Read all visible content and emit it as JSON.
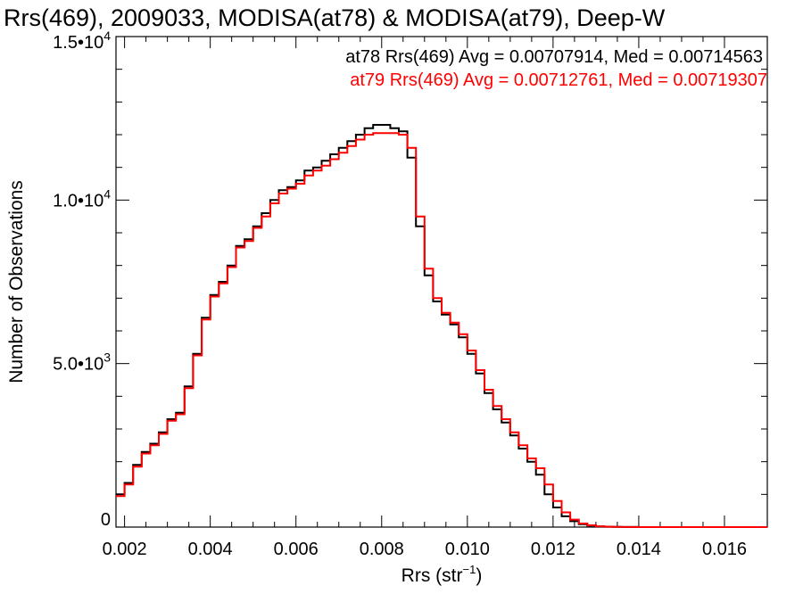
{
  "chart_data": {
    "type": "line",
    "title": "Rrs(469), 2009033, MODISA(at78) & MODISA(at79), Deep-W",
    "xlabel_main": "Rrs (str",
    "xlabel_sup": "−1",
    "xlabel_close": ")",
    "ylabel": "Number of Observations",
    "xlim": [
      0.0018,
      0.017
    ],
    "ylim": [
      0,
      15000
    ],
    "x_ticks": [
      0.002,
      0.004,
      0.006,
      0.008,
      0.01,
      0.012,
      0.014,
      0.016
    ],
    "x_tick_labels": [
      "0.002",
      "0.004",
      "0.006",
      "0.008",
      "0.010",
      "0.012",
      "0.014",
      "0.016"
    ],
    "y_ticks": [
      0,
      5000,
      10000,
      15000
    ],
    "y_tick_labels": [
      {
        "mantissa": "0",
        "exp": ""
      },
      {
        "mantissa": "5.0•10",
        "exp": "3"
      },
      {
        "mantissa": "1.0•10",
        "exp": "4"
      },
      {
        "mantissa": "1.5•10",
        "exp": "4"
      }
    ],
    "annotations": [
      {
        "text": "at78 Rrs(469) Avg = 0.00707914, Med = 0.00714563",
        "color": "#000000"
      },
      {
        "text": "at79 Rrs(469) Avg = 0.00712761, Med = 0.00719307",
        "color": "#ff0000"
      }
    ],
    "series": [
      {
        "color": "#000000",
        "x": [
          0.0018,
          0.002,
          0.0022,
          0.0024,
          0.0026,
          0.0028,
          0.003,
          0.0032,
          0.0034,
          0.0036,
          0.0038,
          0.004,
          0.0042,
          0.0044,
          0.0046,
          0.0048,
          0.005,
          0.0052,
          0.0054,
          0.0056,
          0.0058,
          0.006,
          0.0062,
          0.0064,
          0.0066,
          0.0068,
          0.007,
          0.0072,
          0.0074,
          0.0076,
          0.0078,
          0.008,
          0.0082,
          0.0084,
          0.0086,
          0.0088,
          0.009,
          0.0092,
          0.0094,
          0.0096,
          0.0098,
          0.01,
          0.0102,
          0.0104,
          0.0106,
          0.0108,
          0.011,
          0.0112,
          0.0114,
          0.0116,
          0.0118,
          0.012,
          0.0122,
          0.0124,
          0.0126,
          0.0128,
          0.013,
          0.0132,
          0.0134,
          0.0136,
          0.0138,
          0.014,
          0.0145,
          0.015,
          0.016,
          0.017
        ],
        "values": [
          1000,
          1350,
          1900,
          2300,
          2550,
          2900,
          3300,
          3500,
          4300,
          5300,
          6400,
          7100,
          7500,
          8000,
          8600,
          8800,
          9200,
          9600,
          10000,
          10300,
          10400,
          10600,
          10900,
          11000,
          11200,
          11400,
          11600,
          11800,
          12000,
          12200,
          12300,
          12300,
          12200,
          12100,
          11300,
          9200,
          7700,
          6900,
          6500,
          6200,
          5800,
          5300,
          4700,
          4100,
          3600,
          3200,
          2800,
          2400,
          2000,
          1600,
          1000,
          600,
          330,
          180,
          90,
          45,
          20,
          10,
          5,
          3,
          2,
          1,
          0,
          0,
          0,
          0
        ]
      },
      {
        "color": "#ff0000",
        "x": [
          0.0018,
          0.002,
          0.0022,
          0.0024,
          0.0026,
          0.0028,
          0.003,
          0.0032,
          0.0034,
          0.0036,
          0.0038,
          0.004,
          0.0042,
          0.0044,
          0.0046,
          0.0048,
          0.005,
          0.0052,
          0.0054,
          0.0056,
          0.0058,
          0.006,
          0.0062,
          0.0064,
          0.0066,
          0.0068,
          0.007,
          0.0072,
          0.0074,
          0.0076,
          0.0078,
          0.008,
          0.0082,
          0.0084,
          0.0086,
          0.0088,
          0.009,
          0.0092,
          0.0094,
          0.0096,
          0.0098,
          0.01,
          0.0102,
          0.0104,
          0.0106,
          0.0108,
          0.011,
          0.0112,
          0.0114,
          0.0116,
          0.0118,
          0.012,
          0.0122,
          0.0124,
          0.0126,
          0.0128,
          0.013,
          0.0132,
          0.0134,
          0.0136,
          0.0138,
          0.014,
          0.0145,
          0.015,
          0.016,
          0.017
        ],
        "values": [
          950,
          1300,
          1850,
          2250,
          2500,
          2850,
          3250,
          3450,
          4250,
          5250,
          6350,
          7050,
          7450,
          7950,
          8550,
          8750,
          9150,
          9500,
          9900,
          10200,
          10350,
          10500,
          10750,
          10900,
          11050,
          11250,
          11450,
          11650,
          11850,
          12000,
          12050,
          12050,
          12050,
          12000,
          11600,
          9500,
          7900,
          7000,
          6550,
          6250,
          5900,
          5400,
          4800,
          4200,
          3700,
          3300,
          2900,
          2500,
          2100,
          1800,
          1300,
          800,
          450,
          230,
          110,
          55,
          25,
          12,
          6,
          3,
          2,
          1,
          0,
          0,
          0,
          0
        ]
      }
    ]
  }
}
